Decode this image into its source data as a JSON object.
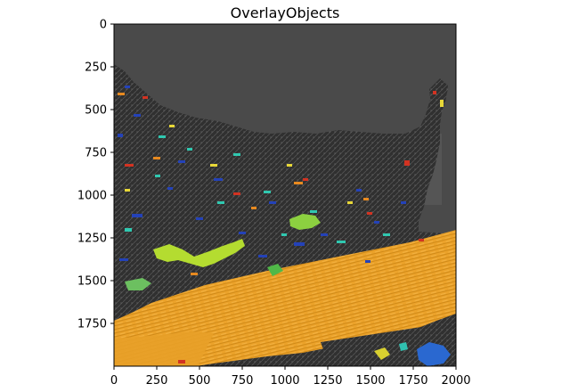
{
  "figure": {
    "title": "OverlayObjects"
  },
  "axes": {
    "x_ticks": [
      "0",
      "250",
      "500",
      "750",
      "1000",
      "1250",
      "1500",
      "1750",
      "2000"
    ],
    "y_ticks": [
      "0",
      "250",
      "500",
      "750",
      "1000",
      "1250",
      "1500",
      "1750"
    ],
    "x_range": [
      0,
      2000
    ],
    "y_range": [
      0,
      2000
    ],
    "y_inverted": true
  },
  "image": {
    "description_colors": {
      "background_gray": "#4a4a4a",
      "tissue_dark": "#2e2e2e",
      "overlay_orange": "#f0a020",
      "overlay_lime": "#b8e030",
      "object_blue": "#2040c0",
      "object_teal": "#30c8b0",
      "object_red": "#d03020",
      "object_yellow": "#e8e030"
    }
  }
}
